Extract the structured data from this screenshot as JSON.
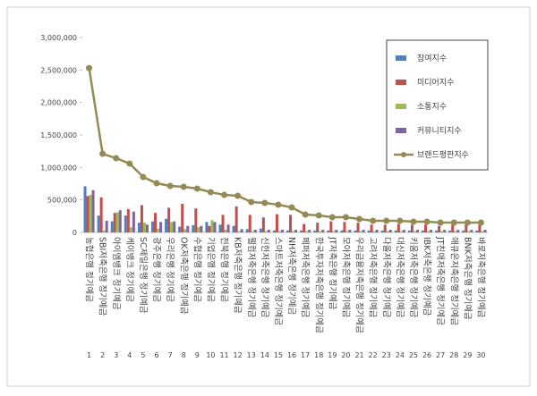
{
  "chart_data": {
    "type": "bar-line",
    "categories": [
      "농협은행 정기예금",
      "SBI저축은행 정기예금",
      "아이엠뱅크 정기예금",
      "케이뱅크 정기예금",
      "SC제일은행 정기예금",
      "광주은행 정기예금",
      "우리은행 정기예금",
      "OK저축은행 정기예금",
      "수협은행 정기예금",
      "기업은행 정기예금",
      "전북은행 정기예금",
      "KB저축은행 정기예금",
      "웰컴저축은행 정기예금",
      "신한저축은행 정기예금",
      "스마트저축은행 정기예금",
      "NH저축은행 정기예금",
      "페퍼저축은행 정기예금",
      "한국투자저축은행 정기예금",
      "JT저축은행 정기예금",
      "모아저축은행 정기예금",
      "우리금융저축은행 정기예금",
      "고려저축은행 정기예금",
      "다올저축은행 정기예금",
      "대신저축은행 정기예금",
      "키움저축은행 정기예금",
      "IBK저축은행 정기예금",
      "JT친애저축은행 정기예금",
      "애큐온저축은행 정기예금",
      "BNK저축은행 정기예금",
      "바로저축은행 정기예금"
    ],
    "ranks": [
      1,
      2,
      3,
      4,
      5,
      6,
      7,
      8,
      9,
      10,
      11,
      12,
      13,
      14,
      15,
      16,
      17,
      18,
      19,
      20,
      21,
      22,
      23,
      24,
      25,
      26,
      27,
      28,
      29,
      30
    ],
    "series": [
      {
        "name": "참여지수",
        "color": "#4f81bd",
        "kind": "bar",
        "values": [
          710000,
          260000,
          170000,
          260000,
          150000,
          170000,
          210000,
          90000,
          110000,
          160000,
          120000,
          100000,
          50000,
          60000,
          30000,
          30000,
          30000,
          30000,
          30000,
          30000,
          30000,
          30000,
          30000,
          30000,
          30000,
          30000,
          30000,
          30000,
          30000,
          30000
        ]
      },
      {
        "name": "미디어지수",
        "color": "#c0504d",
        "kind": "bar",
        "values": [
          560000,
          540000,
          300000,
          360000,
          420000,
          300000,
          380000,
          440000,
          370000,
          100000,
          270000,
          400000,
          270000,
          230000,
          280000,
          270000,
          130000,
          150000,
          170000,
          160000,
          150000,
          120000,
          120000,
          130000,
          120000,
          120000,
          100000,
          120000,
          120000,
          120000
        ]
      },
      {
        "name": "소통지수",
        "color": "#9bbb59",
        "kind": "bar",
        "values": [
          580000,
          30000,
          310000,
          80000,
          150000,
          60000,
          160000,
          50000,
          80000,
          190000,
          40000,
          20000,
          20000,
          20000,
          20000,
          20000,
          20000,
          20000,
          20000,
          20000,
          20000,
          20000,
          20000,
          20000,
          20000,
          20000,
          20000,
          20000,
          20000,
          20000
        ]
      },
      {
        "name": "커뮤니티지수",
        "color": "#8064a2",
        "kind": "bar",
        "values": [
          650000,
          180000,
          340000,
          320000,
          120000,
          160000,
          170000,
          100000,
          100000,
          160000,
          120000,
          50000,
          40000,
          40000,
          40000,
          40000,
          40000,
          40000,
          40000,
          40000,
          40000,
          40000,
          40000,
          40000,
          40000,
          40000,
          40000,
          40000,
          40000,
          40000
        ]
      },
      {
        "name": "브랜드평판지수",
        "color": "#948a54",
        "kind": "line",
        "values": [
          2530000,
          1211000,
          1142000,
          1060000,
          853000,
          757000,
          716000,
          702000,
          674000,
          619000,
          578000,
          564000,
          468000,
          454000,
          427000,
          385000,
          275000,
          261000,
          234000,
          234000,
          206000,
          179000,
          179000,
          179000,
          165000,
          165000,
          151000,
          151000,
          151000,
          151000
        ]
      }
    ],
    "ylim": [
      0,
      3000000
    ],
    "yticks": [
      0,
      {
        "value": 500000,
        "label": "500,000"
      },
      {
        "value": 1000000,
        "label": "1,000,000"
      },
      {
        "value": 1500000,
        "label": "1,500,000"
      },
      {
        "value": 2000000,
        "label": "2,000,000"
      },
      {
        "value": 2500000,
        "label": "2,500,000"
      },
      {
        "value": 3000000,
        "label": "3,000,000"
      }
    ],
    "legend": "top-right"
  }
}
